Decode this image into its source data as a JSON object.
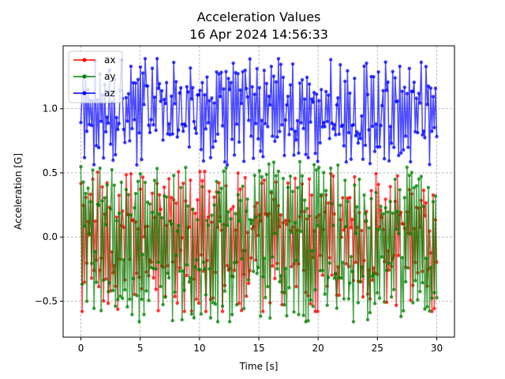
{
  "chart_data": {
    "type": "line",
    "title": "Acceleration Values",
    "subtitle": "16 Apr 2024 14:56:33",
    "xlabel": "Time [s]",
    "ylabel": "Acceleration [G]",
    "xlim": [
      -1.5,
      31.5
    ],
    "ylim": [
      -0.78,
      1.49
    ],
    "xticks": [
      0,
      5,
      10,
      15,
      20,
      25,
      30
    ],
    "xtick_labels": [
      "0",
      "5",
      "10",
      "15",
      "20",
      "25",
      "30"
    ],
    "yticks": [
      -0.5,
      0.0,
      0.5,
      1.0
    ],
    "ytick_labels": [
      "−0.5",
      "0.0",
      "0.5",
      "1.0"
    ],
    "grid": true,
    "legend_position": "top-left",
    "x_range": [
      0,
      30
    ],
    "samples_per_series": 300,
    "series": [
      {
        "name": "ax",
        "color": "#ff0000",
        "mean": -0.05,
        "min": -0.58,
        "max": 0.55
      },
      {
        "name": "ay",
        "color": "#008000",
        "mean": -0.04,
        "min": -0.66,
        "max": 0.61
      },
      {
        "name": "az",
        "color": "#0000ff",
        "mean": 0.98,
        "min": 0.55,
        "max": 1.39
      }
    ]
  }
}
